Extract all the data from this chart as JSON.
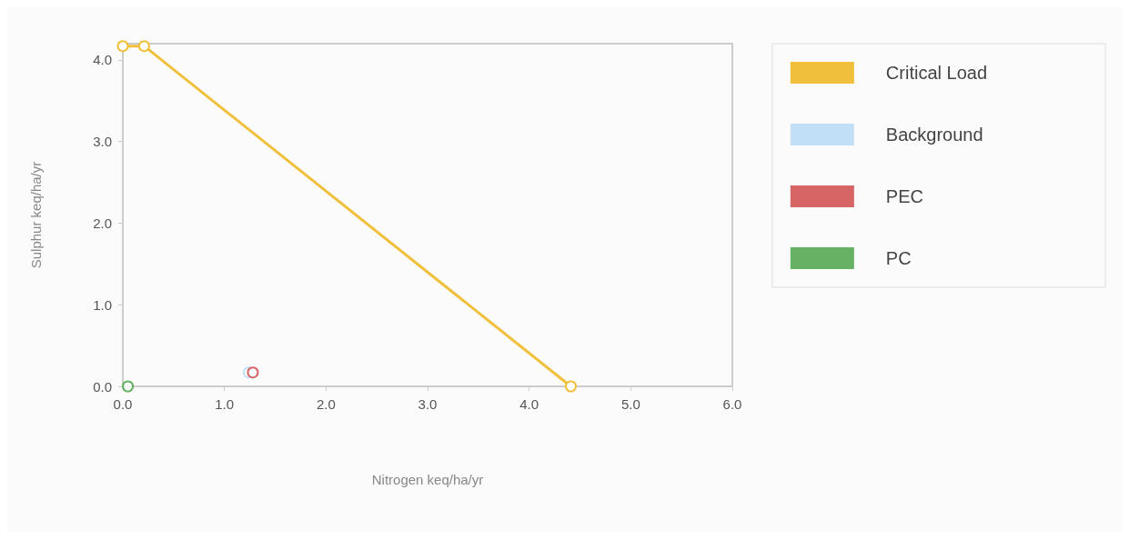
{
  "chart_data": {
    "type": "scatter",
    "xlabel": "Nitrogen keq/ha/yr",
    "ylabel": "Sulphur keq/ha/yr",
    "xlim": [
      0,
      6
    ],
    "ylim": [
      0,
      4.2
    ],
    "xticks": [
      {
        "value": 0,
        "label": "0.0"
      },
      {
        "value": 1,
        "label": "1.0"
      },
      {
        "value": 2,
        "label": "2.0"
      },
      {
        "value": 3,
        "label": "3.0"
      },
      {
        "value": 4,
        "label": "4.0"
      },
      {
        "value": 5,
        "label": "5.0"
      },
      {
        "value": 6,
        "label": "6.0"
      }
    ],
    "yticks": [
      {
        "value": 0,
        "label": "0.0"
      },
      {
        "value": 1,
        "label": "1.0"
      },
      {
        "value": 2,
        "label": "2.0"
      },
      {
        "value": 3,
        "label": "3.0"
      },
      {
        "value": 4,
        "label": "4.0"
      }
    ],
    "grid": false,
    "legend": "right",
    "marker": "circle",
    "series": [
      {
        "name": "Critical Load",
        "type": "line",
        "color": "#f0c03c",
        "x": [
          0,
          0.21,
          4.41
        ],
        "values": [
          4.17,
          4.17,
          0
        ]
      },
      {
        "name": "Background",
        "color": "#b3d9f7",
        "x": [
          1.24
        ],
        "values": [
          0.17
        ]
      },
      {
        "name": "PEC",
        "color": "#d04040",
        "x": [
          1.28
        ],
        "values": [
          0.17
        ]
      },
      {
        "name": "PC",
        "color": "#40a040",
        "x": [
          0.05
        ],
        "values": [
          0
        ]
      }
    ]
  }
}
